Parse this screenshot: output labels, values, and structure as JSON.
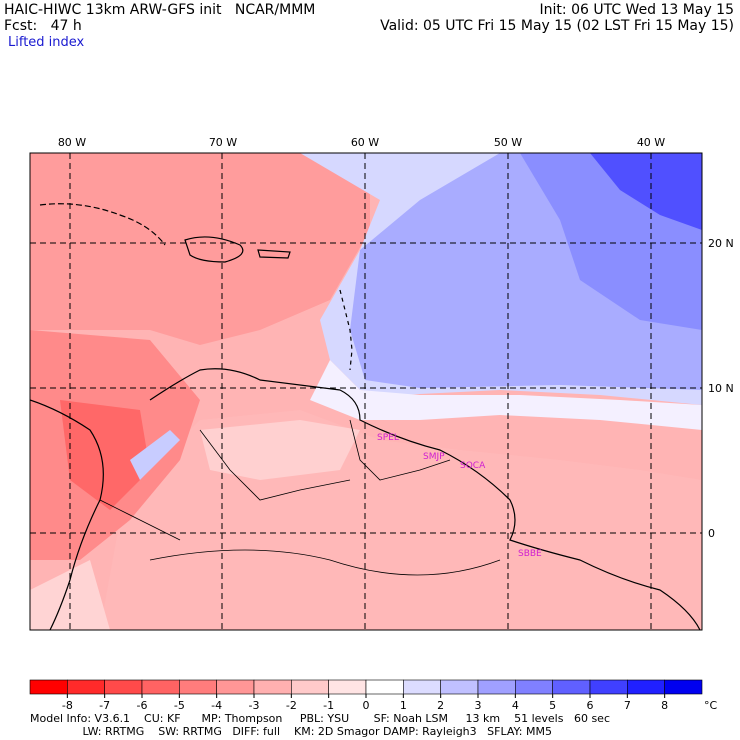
{
  "header": {
    "left_line1": "HAIC-HIWC 13km ARW-GFS init   NCAR/MMM",
    "left_line2": "Fcst:   47 h",
    "field": "Lifted index",
    "right_line1": "Init: 06 UTC Wed 13 May 15",
    "right_line2": "Valid: 05 UTC Fri 15 May 15 (02 LST Fri 15 May 15)"
  },
  "map": {
    "lon_labels": [
      "80 W",
      "70 W",
      "60 W",
      "50 W",
      "40 W"
    ],
    "lat_labels": [
      "20 N",
      "10 N",
      "0"
    ],
    "stations": [
      "SPEL",
      "SMJP",
      "SOCA",
      "SBBE"
    ],
    "colors": {
      "negative": "#f08080",
      "positive": "#8f95ff",
      "strong_positive": "#2828ff",
      "border": "#000000",
      "station": "#d020d0"
    }
  },
  "colorbar": {
    "ticks": [
      "-8",
      "-7",
      "-6",
      "-5",
      "-4",
      "-3",
      "-2",
      "-1",
      "0",
      "1",
      "2",
      "3",
      "4",
      "5",
      "6",
      "7",
      "8"
    ],
    "unit": "°C",
    "colors": [
      "#ff0000",
      "#ff2a2a",
      "#ff4a4a",
      "#ff6363",
      "#ff7c7c",
      "#ff9696",
      "#ffb0b0",
      "#ffcaca",
      "#ffe4e4",
      "#ffffff",
      "#dcdcff",
      "#c0c0ff",
      "#a0a0ff",
      "#8080ff",
      "#6060ff",
      "#4040ff",
      "#2020ff",
      "#0000f0"
    ]
  },
  "footer": {
    "line1": "Model Info: V3.6.1    CU: KF      MP: Thompson     PBL: YSU       SF: Noah LSM     13 km    51 levels   60 sec",
    "line2": "               LW: RRTMG    SW: RRTMG   DIFF: full    KM: 2D Smagor DAMP: Rayleigh3   SFLAY: MM5"
  }
}
